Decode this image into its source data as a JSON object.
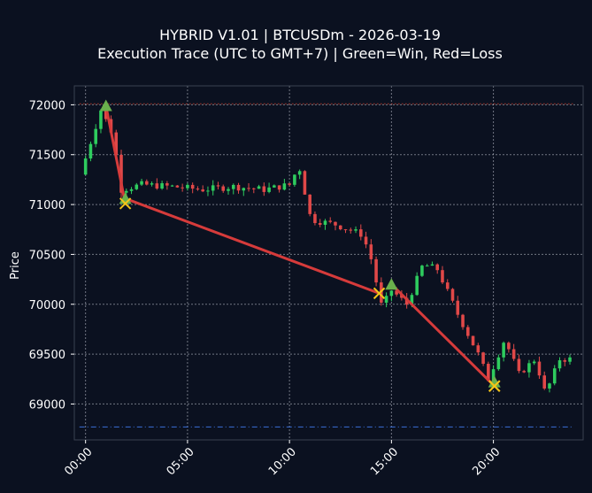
{
  "chart_data": {
    "type": "candlestick",
    "title_line1": "HYBRID V1.01 | BTCUSDm - 2026-03-19",
    "title_line2": "Execution Trace (UTC to GMT+7) | Green=Win, Red=Loss",
    "xlabel": "",
    "ylabel": "Price",
    "xlim": [
      -0.55,
      24.4
    ],
    "ylim": [
      68640,
      72190
    ],
    "x_ticks": [
      {
        "x": 0,
        "label": "00:00"
      },
      {
        "x": 5,
        "label": "05:00"
      },
      {
        "x": 10,
        "label": "10:00"
      },
      {
        "x": 15,
        "label": "15:00"
      },
      {
        "x": 20,
        "label": "20:00"
      }
    ],
    "y_ticks": [
      69000,
      69500,
      70000,
      70500,
      71000,
      71500,
      72000
    ],
    "grid": true,
    "up_color": "#2ecc5e",
    "down_color": "#e04848",
    "trade_line_color": "#d63b3b",
    "entry_marker_color": "#6ab04c",
    "exit_marker_color": "#f5c518",
    "upper_ref_line": {
      "y": 72010,
      "color": "#c0392b"
    },
    "lower_ref_line": {
      "y": 68770,
      "color": "#3b6fd6"
    },
    "waypoints": [
      {
        "x": 0,
        "y": 71300
      },
      {
        "x": 1.0,
        "y": 71950
      },
      {
        "x": 1.6,
        "y": 71700
      },
      {
        "x": 2.0,
        "y": 71150
      },
      {
        "x": 3.0,
        "y": 71200
      },
      {
        "x": 4.5,
        "y": 71180
      },
      {
        "x": 6.0,
        "y": 71150
      },
      {
        "x": 7.5,
        "y": 71180
      },
      {
        "x": 9.0,
        "y": 71150
      },
      {
        "x": 10.3,
        "y": 71200
      },
      {
        "x": 10.7,
        "y": 71400
      },
      {
        "x": 11.3,
        "y": 70850
      },
      {
        "x": 12.5,
        "y": 70800
      },
      {
        "x": 13.8,
        "y": 70700
      },
      {
        "x": 14.2,
        "y": 70500
      },
      {
        "x": 14.8,
        "y": 69950
      },
      {
        "x": 15.2,
        "y": 70150
      },
      {
        "x": 16.0,
        "y": 70000
      },
      {
        "x": 16.8,
        "y": 70400
      },
      {
        "x": 17.5,
        "y": 70350
      },
      {
        "x": 18.5,
        "y": 69900
      },
      {
        "x": 19.5,
        "y": 69500
      },
      {
        "x": 20.0,
        "y": 69250
      },
      {
        "x": 20.8,
        "y": 69650
      },
      {
        "x": 21.5,
        "y": 69300
      },
      {
        "x": 22.3,
        "y": 69450
      },
      {
        "x": 22.8,
        "y": 69100
      },
      {
        "x": 23.5,
        "y": 69450
      },
      {
        "x": 23.9,
        "y": 69450
      }
    ],
    "trades": [
      {
        "entry_x": 1.0,
        "entry_y": 71990,
        "exit_x": 1.95,
        "exit_y": 71010
      },
      {
        "entry_x": 1.95,
        "entry_y": 71060,
        "exit_x": 14.4,
        "exit_y": 70110
      },
      {
        "entry_x": 15.0,
        "entry_y": 70200,
        "exit_x": 20.05,
        "exit_y": 69180
      },
      {
        "entry_x": 20.05,
        "entry_y": 69220,
        "exit_x": 20.05,
        "exit_y": 69180
      }
    ]
  }
}
